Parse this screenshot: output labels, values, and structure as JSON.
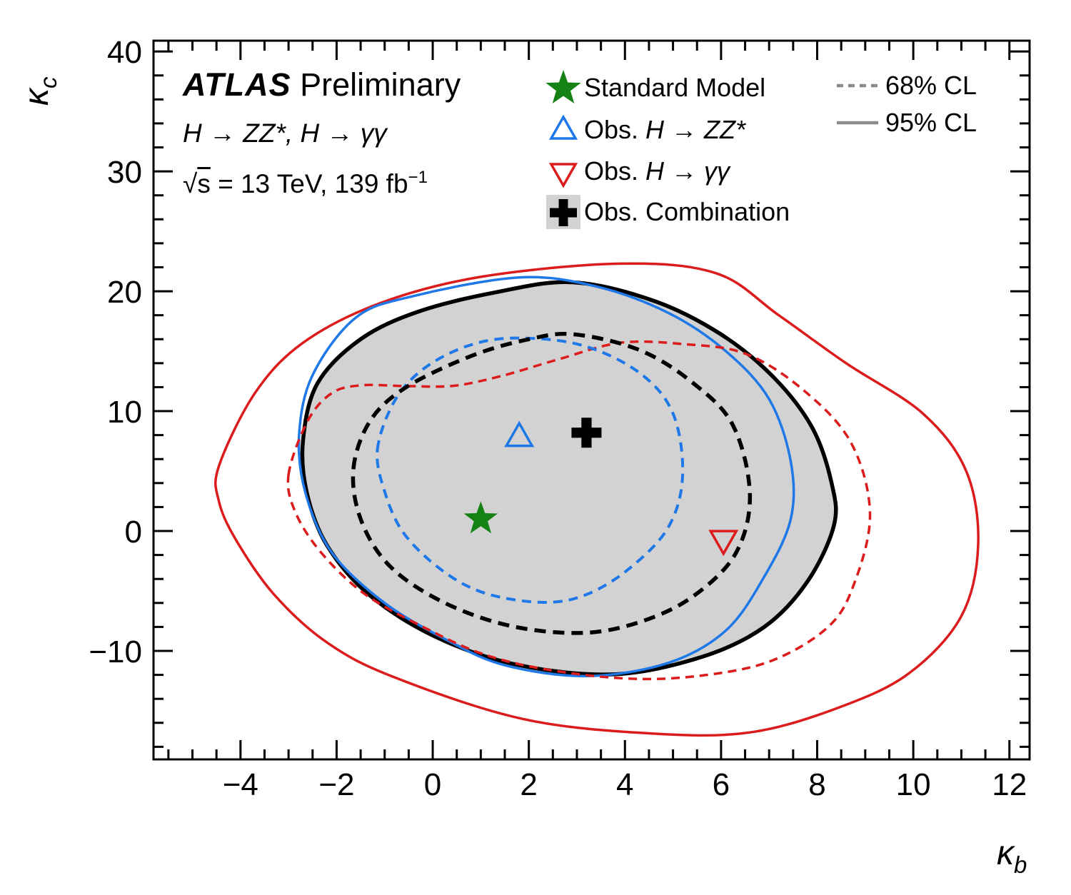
{
  "header": {
    "experiment": "ATLAS",
    "status": " Preliminary",
    "processes": "H → ZZ*, H → γγ",
    "sqrt_sym": "√",
    "sqrt_arg": "s",
    "energy_lumi": " = 13 TeV, 139 fb",
    "lumi_exp": "−1"
  },
  "legend": {
    "items": [
      {
        "plain": "Standard Model",
        "prefix": "",
        "math": "",
        "marker": {
          "type": "star",
          "color": "#148214",
          "box": ""
        }
      },
      {
        "plain": "",
        "prefix": "Obs. ",
        "math": "H → ZZ*",
        "marker": {
          "type": "triangle-up",
          "color": "#1e78e8",
          "box": ""
        }
      },
      {
        "plain": "",
        "prefix": "Obs. ",
        "math": "H → γγ",
        "marker": {
          "type": "triangle-down",
          "color": "#dc1c1c",
          "box": ""
        }
      },
      {
        "plain": "Obs. Combination",
        "prefix": "",
        "math": "",
        "marker": {
          "type": "cross",
          "color": "#000000",
          "box": "#d2d2d2"
        }
      }
    ],
    "cl": [
      {
        "label": "68% CL",
        "style": "dashed",
        "color": "#8a8a8a"
      },
      {
        "label": "95% CL",
        "style": "solid",
        "color": "#8a8a8a"
      }
    ]
  },
  "axes": {
    "x": {
      "symbol": "κ",
      "symbol_sub": "b",
      "ticks": [
        {
          "v": -4,
          "label": "−4"
        },
        {
          "v": -2,
          "label": "−2"
        },
        {
          "v": 0,
          "label": "0"
        },
        {
          "v": 2,
          "label": "2"
        },
        {
          "v": 4,
          "label": "4"
        },
        {
          "v": 6,
          "label": "6"
        },
        {
          "v": 8,
          "label": "8"
        },
        {
          "v": 10,
          "label": "10"
        },
        {
          "v": 12,
          "label": "12"
        }
      ],
      "minor": {
        "start": -5.5,
        "step": 0.5,
        "end": 12.4,
        "major_every": 2
      }
    },
    "y": {
      "symbol": "κ",
      "symbol_sub": "c",
      "ticks": [
        {
          "v": -10,
          "label": "−10"
        },
        {
          "v": 0,
          "label": "0"
        },
        {
          "v": 10,
          "label": "10"
        },
        {
          "v": 20,
          "label": "20"
        },
        {
          "v": 30,
          "label": "30"
        },
        {
          "v": 40,
          "label": "40"
        }
      ],
      "minor": {
        "start": -18,
        "step": 2,
        "end": 40.8,
        "major_every": 10
      }
    }
  },
  "chart_data": {
    "type": "contour",
    "title": "ATLAS Preliminary — H → ZZ*, H → γγ combination, κb–κc likelihood contours",
    "xlabel": "κ_b",
    "ylabel": "κ_c",
    "xlim": [
      -5.81,
      12.42
    ],
    "ylim": [
      -19.05,
      40.9
    ],
    "grid": false,
    "markers": [
      {
        "id": "standard-model",
        "label": "Standard Model",
        "type": "star",
        "color": "#148214",
        "x": 1.0,
        "y": 1.0,
        "size": 25
      },
      {
        "id": "best-fit-zz",
        "label": "Obs. H → ZZ*",
        "type": "triangle-up",
        "color": "#1e78e8",
        "x": 1.8,
        "y": 7.8,
        "size": 20
      },
      {
        "id": "best-fit-gamgam",
        "label": "Obs. H → γγ",
        "type": "triangle-down",
        "color": "#dc1c1c",
        "x": 6.05,
        "y": -0.7,
        "size": 20
      },
      {
        "id": "best-fit-combination",
        "label": "Obs. Combination",
        "type": "cross",
        "color": "#000000",
        "x": 3.2,
        "y": 8.2,
        "size": 21
      }
    ],
    "contours": [
      {
        "id": "combination-95",
        "label": "Obs. Combination 95% CL",
        "color": "#000000",
        "style": "solid",
        "width": 5.5,
        "fill": "#d2d2d2",
        "dash": null,
        "points": [
          [
            -2.7,
            7.5
          ],
          [
            -2.4,
            12.3
          ],
          [
            -1.5,
            16.0
          ],
          [
            -0.3,
            18.3
          ],
          [
            1.3,
            19.9
          ],
          [
            2.9,
            20.75
          ],
          [
            4.6,
            19.2
          ],
          [
            6.0,
            16.4
          ],
          [
            7.1,
            12.8
          ],
          [
            7.9,
            8.6
          ],
          [
            8.3,
            4.0
          ],
          [
            8.35,
            0.5
          ],
          [
            7.8,
            -4.2
          ],
          [
            6.9,
            -8.0
          ],
          [
            5.6,
            -10.5
          ],
          [
            3.8,
            -11.95
          ],
          [
            1.8,
            -11.2
          ],
          [
            0.1,
            -8.9
          ],
          [
            -1.3,
            -5.4
          ],
          [
            -2.2,
            -1.2
          ],
          [
            -2.62,
            3.2
          ]
        ]
      },
      {
        "id": "gamgam-95",
        "label": "Obs. H → γγ 95% CL",
        "color": "#dc1c1c",
        "style": "solid",
        "width": 3.5,
        "fill": null,
        "dash": null,
        "points": [
          [
            -4.45,
            5.4
          ],
          [
            -3.7,
            11.5
          ],
          [
            -2.7,
            15.7
          ],
          [
            -1.1,
            19.0
          ],
          [
            1.0,
            21.2
          ],
          [
            3.9,
            22.3
          ],
          [
            5.9,
            21.5
          ],
          [
            7.2,
            18.0
          ],
          [
            8.6,
            14.0
          ],
          [
            10.2,
            9.8
          ],
          [
            11.1,
            5.0
          ],
          [
            11.35,
            -1.1
          ],
          [
            11.0,
            -7.1
          ],
          [
            9.9,
            -11.9
          ],
          [
            8.4,
            -14.8
          ],
          [
            6.6,
            -16.8
          ],
          [
            4.6,
            -16.9
          ],
          [
            1.9,
            -15.7
          ],
          [
            -0.8,
            -12.2
          ],
          [
            -2.2,
            -9.3
          ],
          [
            -3.3,
            -5.3
          ],
          [
            -4.1,
            -0.7
          ],
          [
            -4.45,
            2.5
          ]
        ]
      },
      {
        "id": "zz-95",
        "label": "Obs. H → ZZ* 95% CL",
        "color": "#1e78e8",
        "style": "solid",
        "width": 3.5,
        "fill": null,
        "dash": null,
        "points": [
          [
            -2.78,
            8.0
          ],
          [
            -2.5,
            13.0
          ],
          [
            -1.6,
            17.8
          ],
          [
            -0.4,
            19.6
          ],
          [
            1.8,
            21.15
          ],
          [
            3.4,
            20.4
          ],
          [
            4.9,
            18.2
          ],
          [
            6.1,
            15.0
          ],
          [
            7.0,
            11.0
          ],
          [
            7.45,
            5.8
          ],
          [
            7.45,
            1.0
          ],
          [
            6.9,
            -3.8
          ],
          [
            6.1,
            -8.3
          ],
          [
            4.9,
            -11.0
          ],
          [
            3.2,
            -12.1
          ],
          [
            1.5,
            -11.2
          ],
          [
            0.3,
            -9.1
          ],
          [
            -1.0,
            -6.0
          ],
          [
            -2.1,
            -1.8
          ],
          [
            -2.65,
            3.2
          ]
        ]
      },
      {
        "id": "gamgam-68",
        "label": "Obs. H → γγ 68% CL",
        "color": "#dc1c1c",
        "style": "dashed",
        "width": 3.5,
        "fill": null,
        "dash": [
          12,
          8
        ],
        "points": [
          [
            -3.0,
            4.7
          ],
          [
            -2.6,
            9.2
          ],
          [
            -2.1,
            11.5
          ],
          [
            -1.5,
            12.15
          ],
          [
            -0.6,
            12.1
          ],
          [
            0.4,
            12.1
          ],
          [
            1.4,
            12.9
          ],
          [
            2.6,
            14.3
          ],
          [
            3.9,
            15.7
          ],
          [
            5.2,
            15.6
          ],
          [
            6.5,
            14.8
          ],
          [
            7.7,
            11.8
          ],
          [
            8.7,
            7.4
          ],
          [
            9.1,
            1.4
          ],
          [
            8.75,
            -4.6
          ],
          [
            8.2,
            -8.1
          ],
          [
            7.0,
            -10.9
          ],
          [
            5.5,
            -12.1
          ],
          [
            4.0,
            -12.3
          ],
          [
            2.3,
            -11.5
          ],
          [
            1.0,
            -10.2
          ],
          [
            -0.2,
            -8.0
          ],
          [
            -1.4,
            -5.3
          ],
          [
            -2.3,
            -1.9
          ],
          [
            -2.85,
            1.5
          ]
        ]
      },
      {
        "id": "zz-68",
        "label": "Obs. H → ZZ* 68% CL",
        "color": "#1e78e8",
        "style": "dashed",
        "width": 4,
        "fill": null,
        "dash": [
          13,
          9
        ],
        "points": [
          [
            -1.15,
            6.8
          ],
          [
            -0.8,
            10.8
          ],
          [
            -0.2,
            13.5
          ],
          [
            0.7,
            15.4
          ],
          [
            1.7,
            16.1
          ],
          [
            3.1,
            15.5
          ],
          [
            4.3,
            13.2
          ],
          [
            5.0,
            9.8
          ],
          [
            5.2,
            4.6
          ],
          [
            4.9,
            0.3
          ],
          [
            4.1,
            -3.1
          ],
          [
            3.2,
            -5.3
          ],
          [
            2.3,
            -5.95
          ],
          [
            1.1,
            -5.2
          ],
          [
            0.2,
            -3.3
          ],
          [
            -0.6,
            -0.2
          ],
          [
            -1.0,
            3.3
          ]
        ]
      },
      {
        "id": "combination-68",
        "label": "Obs. Combination 68% CL",
        "color": "#000000",
        "style": "dashed",
        "width": 5.5,
        "fill": null,
        "dash": [
          16,
          10
        ],
        "points": [
          [
            -1.65,
            5.2
          ],
          [
            -1.3,
            9.2
          ],
          [
            -0.55,
            12.0
          ],
          [
            0.8,
            14.6
          ],
          [
            2.0,
            16.0
          ],
          [
            2.95,
            16.4
          ],
          [
            4.3,
            15.1
          ],
          [
            5.4,
            12.4
          ],
          [
            6.25,
            8.8
          ],
          [
            6.6,
            3.0
          ],
          [
            6.3,
            -1.9
          ],
          [
            5.4,
            -5.5
          ],
          [
            4.3,
            -7.6
          ],
          [
            3.1,
            -8.5
          ],
          [
            1.6,
            -7.9
          ],
          [
            0.2,
            -5.9
          ],
          [
            -0.9,
            -2.9
          ],
          [
            -1.5,
            1.0
          ]
        ]
      }
    ],
    "legend_position": "top"
  },
  "colors": {
    "red": "#dc1c1c",
    "blue": "#1e78e8",
    "green": "#148214",
    "gray_fill": "#d2d2d2",
    "legend_gray": "#8a8a8a",
    "frame": "#000000"
  }
}
